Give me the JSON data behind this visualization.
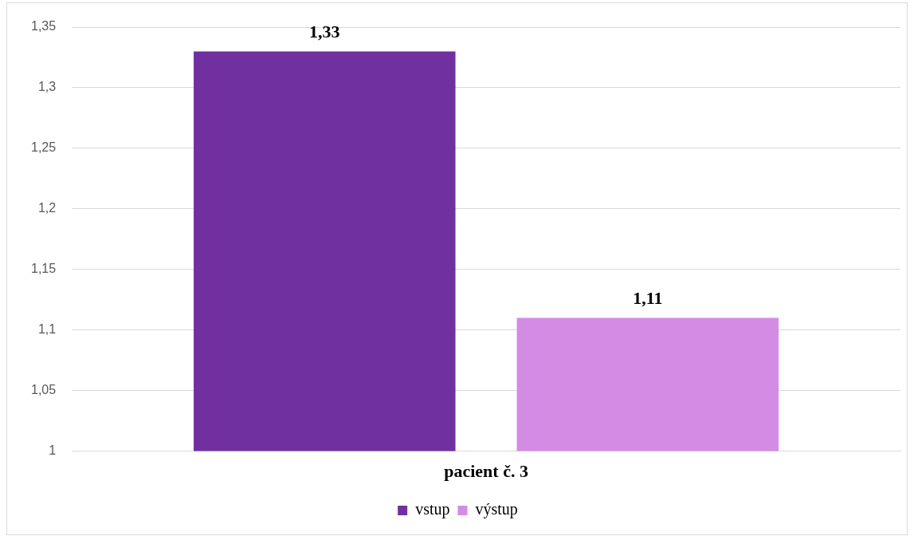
{
  "chart_data": {
    "type": "bar",
    "categories": [
      "pacient č. 3"
    ],
    "series": [
      {
        "name": "vstup",
        "color": "#7030a0",
        "values": [
          1.33
        ],
        "value_labels": [
          "1,33"
        ]
      },
      {
        "name": "výstup",
        "color": "#d48be3",
        "values": [
          1.11
        ],
        "value_labels": [
          "1,11"
        ]
      }
    ],
    "ylim": [
      1,
      1.35
    ],
    "yticks": [
      {
        "value": 1,
        "label": "1"
      },
      {
        "value": 1.05,
        "label": "1,05"
      },
      {
        "value": 1.1,
        "label": "1,1"
      },
      {
        "value": 1.15,
        "label": "1,15"
      },
      {
        "value": 1.2,
        "label": "1,2"
      },
      {
        "value": 1.25,
        "label": "1,25"
      },
      {
        "value": 1.3,
        "label": "1,3"
      },
      {
        "value": 1.35,
        "label": "1,35"
      }
    ],
    "grid": "y",
    "legend": "bottom"
  }
}
